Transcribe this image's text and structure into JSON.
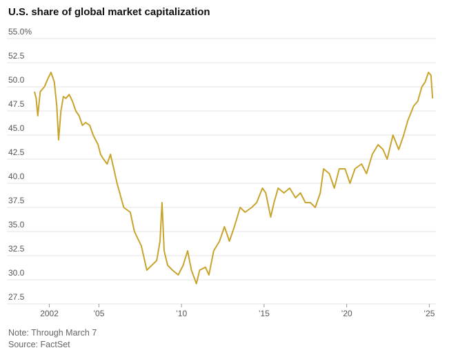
{
  "chart_data": {
    "type": "line",
    "title": "U.S. share of global market capitalization",
    "note": "Note: Through March 7",
    "source": "Source: FactSet",
    "x": [
      2001.1,
      2001.2,
      2001.3,
      2001.45,
      2001.7,
      2001.9,
      2002.1,
      2002.3,
      2002.45,
      2002.56,
      2002.7,
      2002.85,
      2003.0,
      2003.2,
      2003.4,
      2003.6,
      2003.8,
      2004.0,
      2004.2,
      2004.45,
      2004.65,
      2004.95,
      2005.1,
      2005.28,
      2005.5,
      2005.7,
      2005.9,
      2006.1,
      2006.5,
      2006.9,
      2007.15,
      2007.57,
      2007.9,
      2008.2,
      2008.5,
      2008.7,
      2008.82,
      2008.95,
      2009.16,
      2009.45,
      2009.8,
      2010.1,
      2010.37,
      2010.6,
      2010.9,
      2011.1,
      2011.45,
      2011.66,
      2011.95,
      2012.3,
      2012.6,
      2012.9,
      2013.2,
      2013.55,
      2013.85,
      2014.25,
      2014.55,
      2014.9,
      2015.1,
      2015.4,
      2015.6,
      2015.85,
      2016.2,
      2016.55,
      2016.9,
      2017.2,
      2017.5,
      2017.8,
      2018.1,
      2018.4,
      2018.6,
      2018.95,
      2019.25,
      2019.55,
      2019.9,
      2020.2,
      2020.5,
      2020.9,
      2021.2,
      2021.55,
      2021.9,
      2022.2,
      2022.45,
      2022.8,
      2023.15,
      2023.45,
      2023.7,
      2024.05,
      2024.3,
      2024.55,
      2024.75,
      2024.95,
      2025.1,
      2025.2
    ],
    "series": [
      {
        "name": "U.S. share",
        "color": "#c9a42c",
        "values": [
          49.5,
          48.8,
          47.0,
          49.5,
          50.0,
          50.8,
          51.5,
          50.5,
          48.0,
          44.5,
          47.5,
          49.0,
          48.8,
          49.2,
          48.5,
          47.5,
          47.0,
          46.0,
          46.3,
          46.0,
          45.0,
          44.0,
          43.0,
          42.5,
          42.0,
          43.0,
          41.5,
          40.0,
          37.5,
          37.0,
          35.0,
          33.5,
          31.0,
          31.5,
          32.0,
          34.0,
          38.0,
          33.0,
          31.5,
          31.0,
          30.5,
          31.5,
          33.0,
          31.0,
          29.6,
          31.0,
          31.3,
          30.5,
          33.0,
          34.0,
          35.5,
          34.0,
          35.5,
          37.5,
          37.0,
          37.5,
          38.0,
          39.5,
          39.0,
          36.5,
          38.0,
          39.5,
          39.0,
          39.5,
          38.5,
          39.0,
          38.0,
          38.0,
          37.5,
          39.0,
          41.5,
          41.0,
          39.5,
          41.5,
          41.5,
          40.0,
          41.5,
          42.0,
          41.0,
          43.0,
          44.0,
          43.5,
          42.5,
          45.0,
          43.5,
          45.0,
          46.5,
          48.0,
          48.5,
          50.0,
          50.5,
          51.5,
          51.2,
          48.8
        ]
      }
    ],
    "xlim": [
      2001.1,
      2025.4
    ],
    "xticks": [
      2002,
      {
        "value": 2005,
        "label": "’05"
      },
      {
        "value": 2010,
        "label": "’10"
      },
      {
        "value": 2015,
        "label": "’15"
      },
      {
        "value": 2020,
        "label": "’20"
      },
      {
        "value": 2025,
        "label": "’25"
      }
    ],
    "ylim": [
      27.5,
      55
    ],
    "yticks": [
      27.5,
      {
        "value": 30,
        "label": "30.0"
      },
      32.5,
      {
        "value": 35,
        "label": "35.0"
      },
      37.5,
      {
        "value": 40,
        "label": "40.0"
      },
      42.5,
      {
        "value": 45,
        "label": "45.0"
      },
      47.5,
      {
        "value": 50,
        "label": "50.0"
      },
      52.5,
      {
        "value": 55,
        "label": "55.0%"
      }
    ],
    "grid": true
  }
}
